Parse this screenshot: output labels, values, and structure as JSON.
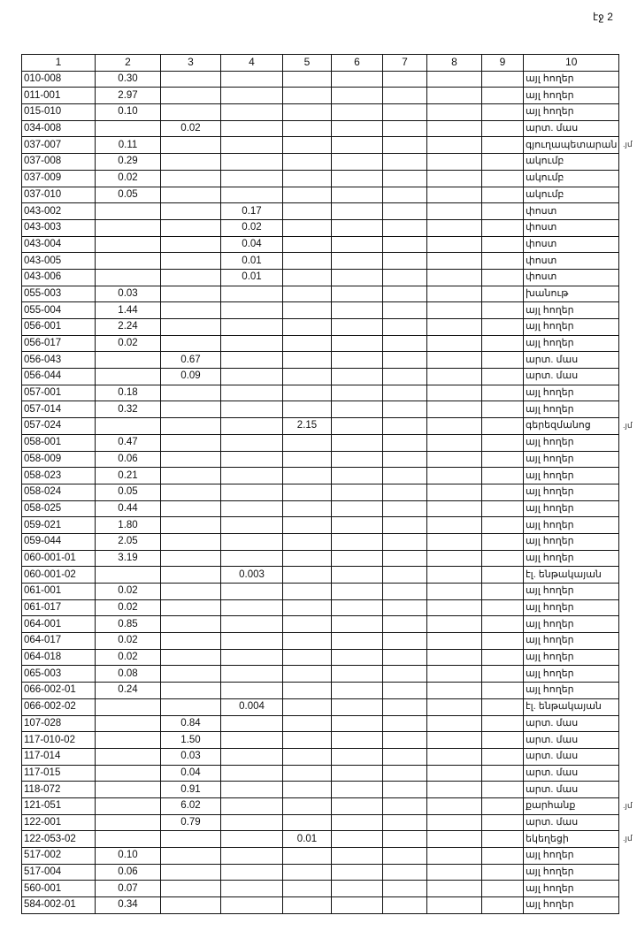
{
  "page_label": "էջ 2",
  "headers": [
    "1",
    "2",
    "3",
    "4",
    "5",
    "6",
    "7",
    "8",
    "9",
    "10"
  ],
  "rows": [
    {
      "c": [
        "010-008",
        "0.30",
        "",
        "",
        "",
        "",
        "",
        "",
        "",
        "այլ հողեր"
      ]
    },
    {
      "c": [
        "011-001",
        "2.97",
        "",
        "",
        "",
        "",
        "",
        "",
        "",
        "այլ հողեր"
      ]
    },
    {
      "c": [
        "015-010",
        "0.10",
        "",
        "",
        "",
        "",
        "",
        "",
        "",
        "այլ հողեր"
      ]
    },
    {
      "c": [
        "034-008",
        "",
        "0.02",
        "",
        "",
        "",
        "",
        "",
        "",
        "արտ. մաս"
      ]
    },
    {
      "c": [
        "037-007",
        "0.11",
        "",
        "",
        "",
        "",
        "",
        "",
        "",
        "գյուղապետարան"
      ],
      "note": ".յմ"
    },
    {
      "c": [
        "037-008",
        "0.29",
        "",
        "",
        "",
        "",
        "",
        "",
        "",
        "ակումբ"
      ]
    },
    {
      "c": [
        "037-009",
        "0.02",
        "",
        "",
        "",
        "",
        "",
        "",
        "",
        "ակումբ"
      ]
    },
    {
      "c": [
        "037-010",
        "0.05",
        "",
        "",
        "",
        "",
        "",
        "",
        "",
        "ակումբ"
      ]
    },
    {
      "c": [
        "043-002",
        "",
        "",
        "0.17",
        "",
        "",
        "",
        "",
        "",
        "փոստ"
      ]
    },
    {
      "c": [
        "043-003",
        "",
        "",
        "0.02",
        "",
        "",
        "",
        "",
        "",
        "փոստ"
      ]
    },
    {
      "c": [
        "043-004",
        "",
        "",
        "0.04",
        "",
        "",
        "",
        "",
        "",
        "փոստ"
      ]
    },
    {
      "c": [
        "043-005",
        "",
        "",
        "0.01",
        "",
        "",
        "",
        "",
        "",
        "փոստ"
      ]
    },
    {
      "c": [
        "043-006",
        "",
        "",
        "0.01",
        "",
        "",
        "",
        "",
        "",
        "փոստ"
      ]
    },
    {
      "c": [
        "055-003",
        "0.03",
        "",
        "",
        "",
        "",
        "",
        "",
        "",
        "խանութ"
      ]
    },
    {
      "c": [
        "055-004",
        "1.44",
        "",
        "",
        "",
        "",
        "",
        "",
        "",
        "այլ հողեր"
      ]
    },
    {
      "c": [
        "056-001",
        "2.24",
        "",
        "",
        "",
        "",
        "",
        "",
        "",
        "այլ հողեր"
      ]
    },
    {
      "c": [
        "056-017",
        "0.02",
        "",
        "",
        "",
        "",
        "",
        "",
        "",
        "այլ հողեր"
      ]
    },
    {
      "c": [
        "056-043",
        "",
        "0.67",
        "",
        "",
        "",
        "",
        "",
        "",
        "արտ. մաս"
      ]
    },
    {
      "c": [
        "056-044",
        "",
        "0.09",
        "",
        "",
        "",
        "",
        "",
        "",
        "արտ. մաս"
      ]
    },
    {
      "c": [
        "057-001",
        "0.18",
        "",
        "",
        "",
        "",
        "",
        "",
        "",
        "այլ հողեր"
      ]
    },
    {
      "c": [
        "057-014",
        "0.32",
        "",
        "",
        "",
        "",
        "",
        "",
        "",
        "այլ հողեր"
      ]
    },
    {
      "c": [
        "057-024",
        "",
        "",
        "",
        "2.15",
        "",
        "",
        "",
        "",
        "գերեզմանոց"
      ],
      "note": ".յմ"
    },
    {
      "c": [
        "058-001",
        "0.47",
        "",
        "",
        "",
        "",
        "",
        "",
        "",
        "այլ հողեր"
      ]
    },
    {
      "c": [
        "058-009",
        "0.06",
        "",
        "",
        "",
        "",
        "",
        "",
        "",
        "այլ հողեր"
      ]
    },
    {
      "c": [
        "058-023",
        "0.21",
        "",
        "",
        "",
        "",
        "",
        "",
        "",
        "այլ հողեր"
      ]
    },
    {
      "c": [
        "058-024",
        "0.05",
        "",
        "",
        "",
        "",
        "",
        "",
        "",
        "այլ հողեր"
      ]
    },
    {
      "c": [
        "058-025",
        "0.44",
        "",
        "",
        "",
        "",
        "",
        "",
        "",
        "այլ հողեր"
      ]
    },
    {
      "c": [
        "059-021",
        "1.80",
        "",
        "",
        "",
        "",
        "",
        "",
        "",
        "այլ հողեր"
      ]
    },
    {
      "c": [
        "059-044",
        "2.05",
        "",
        "",
        "",
        "",
        "",
        "",
        "",
        "այլ հողեր"
      ]
    },
    {
      "c": [
        "060-001-01",
        "3.19",
        "",
        "",
        "",
        "",
        "",
        "",
        "",
        "այլ հողեր"
      ]
    },
    {
      "c": [
        "060-001-02",
        "",
        "",
        "0.003",
        "",
        "",
        "",
        "",
        "",
        "էլ. ենթակայան"
      ]
    },
    {
      "c": [
        "061-001",
        "0.02",
        "",
        "",
        "",
        "",
        "",
        "",
        "",
        "այլ հողեր"
      ]
    },
    {
      "c": [
        "061-017",
        "0.02",
        "",
        "",
        "",
        "",
        "",
        "",
        "",
        "այլ հողեր"
      ]
    },
    {
      "c": [
        "064-001",
        "0.85",
        "",
        "",
        "",
        "",
        "",
        "",
        "",
        "այլ հողեր"
      ]
    },
    {
      "c": [
        "064-017",
        "0.02",
        "",
        "",
        "",
        "",
        "",
        "",
        "",
        "այլ հողեր"
      ]
    },
    {
      "c": [
        "064-018",
        "0.02",
        "",
        "",
        "",
        "",
        "",
        "",
        "",
        "այլ հողեր"
      ]
    },
    {
      "c": [
        "065-003",
        "0.08",
        "",
        "",
        "",
        "",
        "",
        "",
        "",
        "այլ հողեր"
      ]
    },
    {
      "c": [
        "066-002-01",
        "0.24",
        "",
        "",
        "",
        "",
        "",
        "",
        "",
        "այլ հողեր"
      ]
    },
    {
      "c": [
        "066-002-02",
        "",
        "",
        "0.004",
        "",
        "",
        "",
        "",
        "",
        "էլ. ենթակայան"
      ]
    },
    {
      "c": [
        "107-028",
        "",
        "0.84",
        "",
        "",
        "",
        "",
        "",
        "",
        "արտ. մաս"
      ]
    },
    {
      "c": [
        "117-010-02",
        "",
        "1.50",
        "",
        "",
        "",
        "",
        "",
        "",
        "արտ. մաս"
      ]
    },
    {
      "c": [
        "117-014",
        "",
        "0.03",
        "",
        "",
        "",
        "",
        "",
        "",
        "արտ. մաս"
      ]
    },
    {
      "c": [
        "117-015",
        "",
        "0.04",
        "",
        "",
        "",
        "",
        "",
        "",
        "արտ. մաս"
      ]
    },
    {
      "c": [
        "118-072",
        "",
        "0.91",
        "",
        "",
        "",
        "",
        "",
        "",
        "արտ. մաս"
      ]
    },
    {
      "c": [
        "121-051",
        "",
        "6.02",
        "",
        "",
        "",
        "",
        "",
        "",
        "քարհանք"
      ],
      "note": ".յմ"
    },
    {
      "c": [
        "122-001",
        "",
        "0.79",
        "",
        "",
        "",
        "",
        "",
        "",
        "արտ. մաս"
      ]
    },
    {
      "c": [
        "122-053-02",
        "",
        "",
        "",
        "0.01",
        "",
        "",
        "",
        "",
        "եկեղեցի"
      ],
      "note": ".յմ"
    },
    {
      "c": [
        "517-002",
        "0.10",
        "",
        "",
        "",
        "",
        "",
        "",
        "",
        "այլ հողեր"
      ]
    },
    {
      "c": [
        "517-004",
        "0.06",
        "",
        "",
        "",
        "",
        "",
        "",
        "",
        "այլ հողեր"
      ]
    },
    {
      "c": [
        "560-001",
        "0.07",
        "",
        "",
        "",
        "",
        "",
        "",
        "",
        "այլ հողեր"
      ]
    },
    {
      "c": [
        "584-002-01",
        "0.34",
        "",
        "",
        "",
        "",
        "",
        "",
        "",
        "այլ հողեր"
      ]
    }
  ]
}
